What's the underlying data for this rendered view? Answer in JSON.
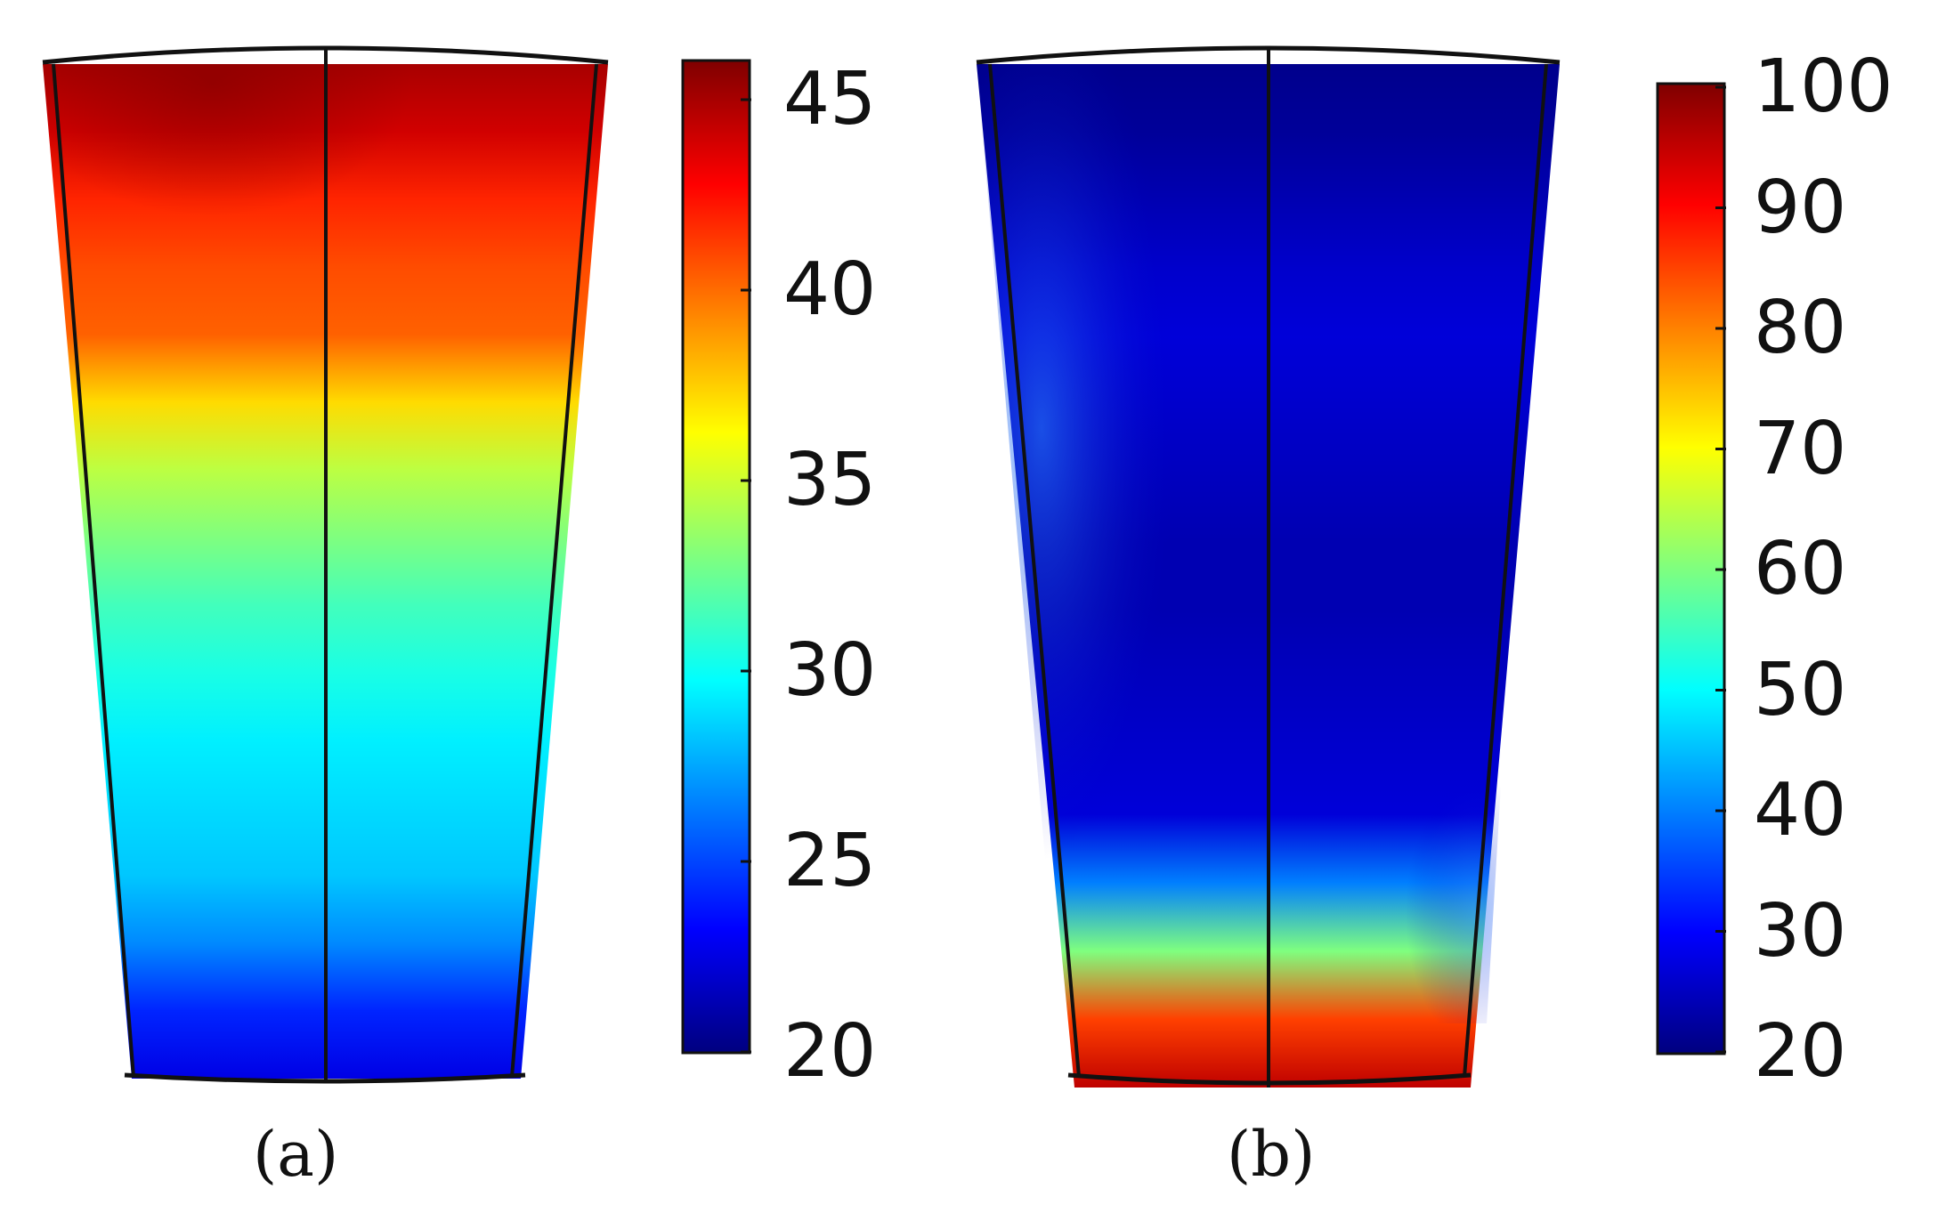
{
  "panels": [
    {
      "caption": "(a)",
      "colorbar": {
        "min": 20,
        "max": 45,
        "ticks": [
          "45",
          "40",
          "35",
          "30",
          "25",
          "20"
        ],
        "colormap": [
          "#00007f",
          "#0000ff",
          "#007fff",
          "#00ffff",
          "#7fff7f",
          "#ffff00",
          "#ff7f00",
          "#ff0000",
          "#7f0000"
        ]
      },
      "field_profile_top_to_bottom": [
        44,
        43,
        41,
        40,
        39.5,
        36.5,
        34,
        32.5,
        31,
        30,
        29,
        28.5,
        28,
        26.5,
        24,
        22.5
      ]
    },
    {
      "caption": "(b)",
      "colorbar": {
        "min": 20,
        "max": 100,
        "ticks": [
          "100",
          "90",
          "80",
          "70",
          "60",
          "50",
          "40",
          "30",
          "20"
        ],
        "colormap": [
          "#00007f",
          "#0000ff",
          "#007fff",
          "#00ffff",
          "#7fff7f",
          "#ffff00",
          "#ff7f00",
          "#ff0000",
          "#7f0000"
        ]
      },
      "field_profile_top_to_bottom": [
        21,
        22,
        24,
        26,
        27,
        26,
        25,
        24,
        24,
        25,
        26,
        27,
        40,
        60,
        85,
        95
      ]
    }
  ]
}
